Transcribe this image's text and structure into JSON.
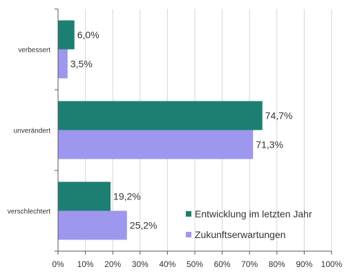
{
  "chart_data": {
    "type": "bar",
    "orientation": "horizontal",
    "categories": [
      "verbessert",
      "unverändert",
      "verschlechtert"
    ],
    "series": [
      {
        "name": "Entwicklung im letzten Jahr",
        "color": "#1d7f72",
        "values": [
          6.0,
          74.7,
          19.2
        ],
        "labels": [
          "6,0%",
          "74,7%",
          "19,2%"
        ]
      },
      {
        "name": "Zukunftserwartungen",
        "color": "#9e97ee",
        "values": [
          3.5,
          71.3,
          25.2
        ],
        "labels": [
          "3,5%",
          "71,3%",
          "25,2%"
        ]
      }
    ],
    "xlim": [
      0,
      100
    ],
    "x_ticks": [
      "0%",
      "10%",
      "20%",
      "30%",
      "40%",
      "50%",
      "60%",
      "70%",
      "80%",
      "90%",
      "100%"
    ],
    "grid": true,
    "legend_position": "bottom-right"
  }
}
